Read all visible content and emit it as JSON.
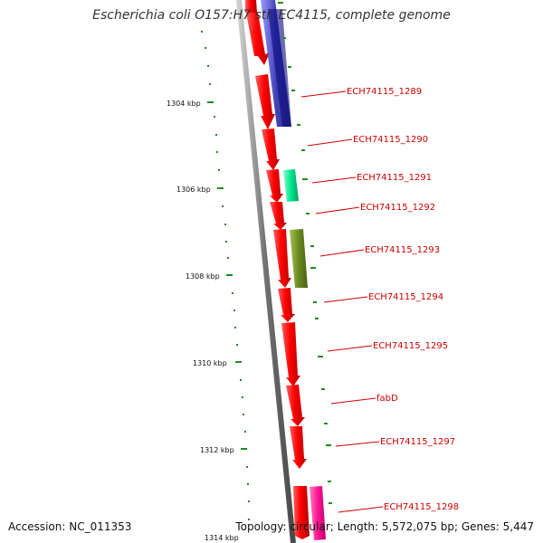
{
  "title": "Escherichia coli O157:H7 str. EC4115, complete genome",
  "footer": {
    "accession": "Accession: NC_011353",
    "summary": "Topology: circular; Length: 5,572,075 bp; Genes: 5,447"
  },
  "scale_labels": [
    "1304 kbp",
    "1306 kbp",
    "1308 kbp",
    "1310 kbp",
    "1312 kbp",
    "1314 kbp"
  ],
  "gene_labels": [
    "ECH74115_1289",
    "ECH74115_1290",
    "ECH74115_1291",
    "ECH74115_1292",
    "ECH74115_1293",
    "ECH74115_1294",
    "ECH74115_1295",
    "fabD",
    "ECH74115_1297",
    "ECH74115_1298"
  ],
  "colors": {
    "forward_gene": "#ff0000",
    "reverse_blue": "#1a1aa0",
    "reverse_teal": "#00e690",
    "reverse_olive": "#6b8a22",
    "reverse_pink": "#ff1493",
    "label": "#cc0000",
    "tick": "#228b22",
    "backbone": "#777777"
  }
}
